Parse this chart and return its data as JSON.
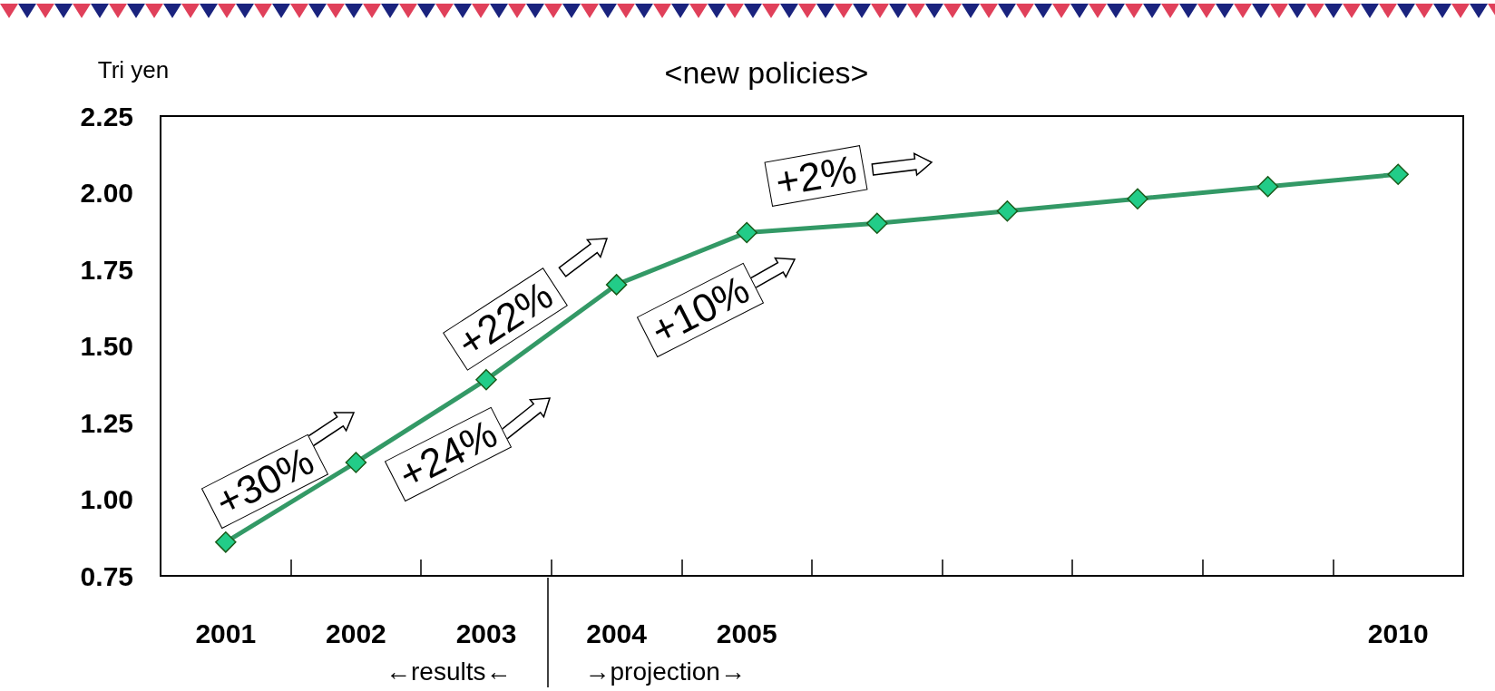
{
  "chart_data": {
    "type": "line",
    "title": "<new policies>",
    "ylabel": "Tri yen",
    "categories": [
      "2001",
      "2002",
      "2003",
      "2004",
      "2005",
      null,
      null,
      null,
      null,
      "2010"
    ],
    "series": [
      {
        "color": "#339966",
        "values": [
          0.86,
          1.12,
          1.39,
          1.7,
          1.87,
          1.9,
          1.94,
          1.98,
          2.02,
          2.06
        ]
      }
    ],
    "ylim": [
      0.75,
      2.25
    ],
    "yticks": [
      {
        "value": 0.75,
        "label": "0.75"
      },
      {
        "value": 1,
        "label": "1.00"
      },
      {
        "value": 1.25,
        "label": "1.25"
      },
      {
        "value": 1.5,
        "label": "1.50"
      },
      {
        "value": 1.75,
        "label": "1.75"
      },
      {
        "value": 2,
        "label": "2.00"
      },
      {
        "value": 2.25,
        "label": "2.25"
      }
    ],
    "marker": "diamond",
    "line_style": "solid",
    "annotations": [
      "+30%",
      "+24%",
      "+22%",
      "+10%",
      "+2%",
      "←results←",
      "→projection→"
    ]
  }
}
